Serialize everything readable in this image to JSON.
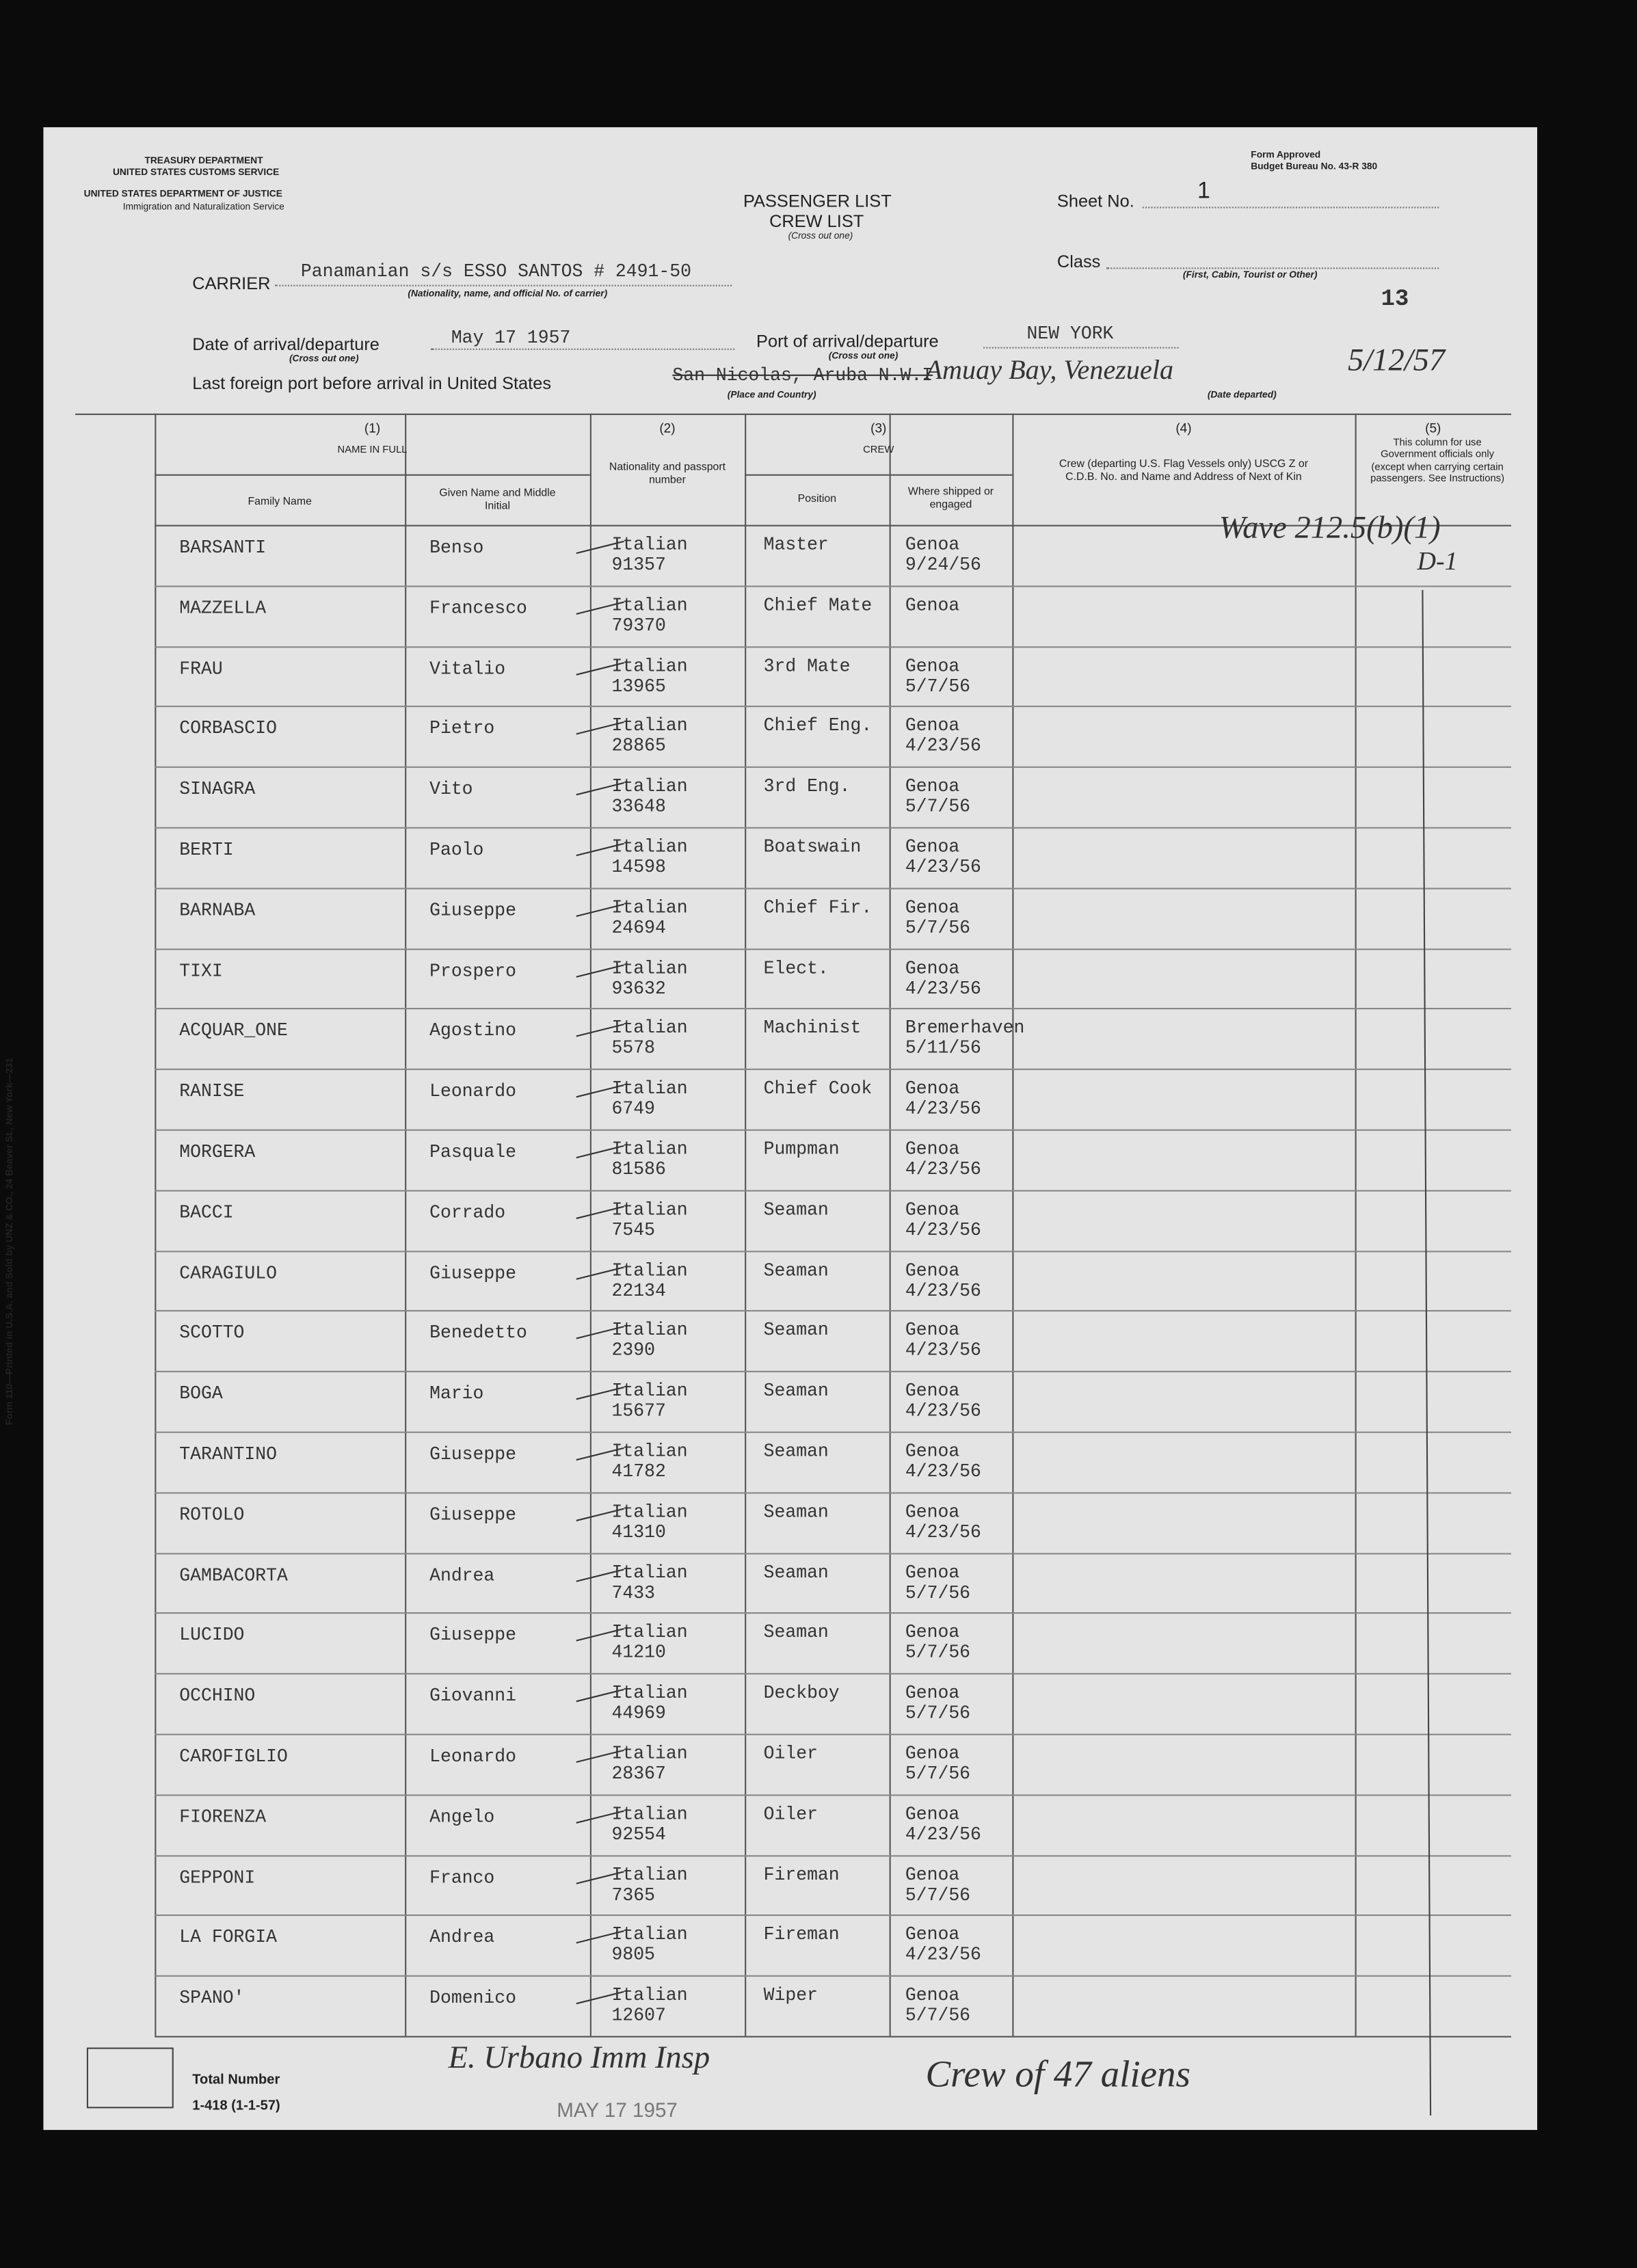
{
  "header": {
    "agency_lines": [
      "TREASURY DEPARTMENT",
      "UNITED STATES CUSTOMS SERVICE",
      "UNITED STATES DEPARTMENT OF JUSTICE",
      "Immigration and Naturalization Service"
    ],
    "form_approved": "Form Approved",
    "budget": "Budget Bureau No. 43-R 380",
    "title1": "PASSENGER LIST",
    "title2": "CREW LIST",
    "title_note": "(Cross out one)",
    "sheet_label": "Sheet No.",
    "sheet_no": "1",
    "class_label": "Class",
    "class_note": "(First, Cabin, Tourist or Other)",
    "page_number": "13",
    "carrier_label": "CARRIER",
    "carrier": "Panamanian s/s ESSO SANTOS # 2491-50",
    "carrier_note": "(Nationality, name, and official No. of carrier)",
    "date_label": "Date of arrival/departure",
    "date_note": "(Cross out one)",
    "date": "May 17 1957",
    "port_label": "Port of arrival/departure",
    "port_note": "(Cross out one)",
    "port": "NEW YORK",
    "last_port_label": "Last foreign port before arrival in United States",
    "last_port_struck": "San Nicolas, Aruba N.W.I",
    "last_port": "Amuay Bay, Venezuela",
    "last_port_note": "(Place and Country)",
    "date_departed": "5/12/57",
    "date_departed_note": "(Date departed)"
  },
  "table": {
    "col1_num": "(1)",
    "col1_title": "NAME IN FULL",
    "family": "Family Name",
    "given": "Given Name and Middle Initial",
    "col2_num": "(2)",
    "col2_title": "Nationality and passport number",
    "col3_num": "(3)",
    "col3_title": "CREW",
    "position": "Position",
    "shipped": "Where shipped or engaged",
    "col4_num": "(4)",
    "col4_title": "Crew (departing U.S. Flag Vessels only) USCG Z or C.D.B. No. and Name and Address of Next of Kin",
    "col5_num": "(5)",
    "col5_title": "This column for use Government officials only (except when carrying certain passengers. See Instructions)",
    "rows": [
      {
        "family": "BARSANTI",
        "given": "Benso",
        "nationality": "Italian",
        "passport": "91357",
        "position": "Master",
        "place": "Genoa",
        "date": "9/24/56"
      },
      {
        "family": "MAZZELLA",
        "given": "Francesco",
        "nationality": "Italian",
        "passport": "79370",
        "position": "Chief Mate",
        "place": "Genoa"
      },
      {
        "family": "FRAU",
        "given": "Vitalio",
        "nationality": "Italian",
        "passport": "13965",
        "position": "3rd Mate",
        "place": "Genoa",
        "date": "5/7/56"
      },
      {
        "family": "CORBASCIO",
        "given": "Pietro",
        "nationality": "Italian",
        "passport": "28865",
        "position": "Chief Eng.",
        "place": "Genoa",
        "date": "4/23/56"
      },
      {
        "family": "SINAGRA",
        "given": "Vito",
        "nationality": "Italian",
        "passport": "33648",
        "position": "3rd Eng.",
        "place": "Genoa",
        "date": "5/7/56"
      },
      {
        "family": "BERTI",
        "given": "Paolo",
        "nationality": "Italian",
        "passport": "14598",
        "position": "Boatswain",
        "place": "Genoa",
        "date": "4/23/56"
      },
      {
        "family": "BARNABA",
        "given": "Giuseppe",
        "nationality": "Italian",
        "passport": "24694",
        "position": "Chief Fir.",
        "place": "Genoa",
        "date": "5/7/56"
      },
      {
        "family": "TIXI",
        "given": "Prospero",
        "nationality": "Italian",
        "passport": "93632",
        "position": "Elect.",
        "place": "Genoa",
        "date": "4/23/56"
      },
      {
        "family": "ACQUAR_ONE",
        "given": "Agostino",
        "nationality": "Italian",
        "passport": "5578",
        "position": "Machinist",
        "place": "Bremerhaven",
        "date": "5/11/56"
      },
      {
        "family": "RANISE",
        "given": "Leonardo",
        "nationality": "Italian",
        "passport": "6749",
        "position": "Chief Cook",
        "place": "Genoa",
        "date": "4/23/56"
      },
      {
        "family": "MORGERA",
        "given": "Pasquale",
        "nationality": "Italian",
        "passport": "81586",
        "position": "Pumpman",
        "place": "Genoa",
        "date": "4/23/56"
      },
      {
        "family": "BACCI",
        "given": "Corrado",
        "nationality": "Italian",
        "passport": "7545",
        "position": "Seaman",
        "place": "Genoa",
        "date": "4/23/56"
      },
      {
        "family": "CARAGIULO",
        "given": "Giuseppe",
        "nationality": "Italian",
        "passport": "22134",
        "position": "Seaman",
        "place": "Genoa",
        "date": "4/23/56"
      },
      {
        "family": "SCOTTO",
        "given": "Benedetto",
        "nationality": "Italian",
        "passport": "2390",
        "position": "Seaman",
        "place": "Genoa",
        "date": "4/23/56"
      },
      {
        "family": "BOGA",
        "given": "Mario",
        "nationality": "Italian",
        "passport": "15677",
        "position": "Seaman",
        "place": "Genoa",
        "date": "4/23/56"
      },
      {
        "family": "TARANTINO",
        "given": "Giuseppe",
        "nationality": "Italian",
        "passport": "41782",
        "position": "Seaman",
        "place": "Genoa",
        "date": "4/23/56"
      },
      {
        "family": "ROTOLO",
        "given": "Giuseppe",
        "nationality": "Italian",
        "passport": "41310",
        "position": "Seaman",
        "place": "Genoa",
        "date": "4/23/56"
      },
      {
        "family": "GAMBACORTA",
        "given": "Andrea",
        "nationality": "Italian",
        "passport": "7433",
        "position": "Seaman",
        "place": "Genoa",
        "date": "5/7/56"
      },
      {
        "family": "LUCIDO",
        "given": "Giuseppe",
        "nationality": "Italian",
        "passport": "41210",
        "position": "Seaman",
        "place": "Genoa",
        "date": "5/7/56"
      },
      {
        "family": "OCCHINO",
        "given": "Giovanni",
        "nationality": "Italian",
        "passport": "44969",
        "position": "Deckboy",
        "place": "Genoa",
        "date": "5/7/56"
      },
      {
        "family": "CAROFIGLIO",
        "given": "Leonardo",
        "nationality": "Italian",
        "passport": "28367",
        "position": "Oiler",
        "place": "Genoa",
        "date": "5/7/56"
      },
      {
        "family": "FIORENZA",
        "given": "Angelo",
        "nationality": "Italian",
        "passport": "92554",
        "position": "Oiler",
        "place": "Genoa",
        "date": "4/23/56"
      },
      {
        "family": "GEPPONI",
        "given": "Franco",
        "nationality": "Italian",
        "passport": "7365",
        "position": "Fireman",
        "place": "Genoa",
        "date": "5/7/56"
      },
      {
        "family": "LA FORGIA",
        "given": "Andrea",
        "nationality": "Italian",
        "passport": "9805",
        "position": "Fireman",
        "place": "Genoa",
        "date": "4/23/56"
      },
      {
        "family": "SPANO'",
        "given": "Domenico",
        "nationality": "Italian",
        "passport": "12607",
        "position": "Wiper",
        "place": "Genoa",
        "date": "5/7/56"
      }
    ]
  },
  "annotation": {
    "code": "Wave 212.5(b)(1)",
    "mark": "D-1"
  },
  "footer": {
    "total_label": "Total Number",
    "form_no": "1-418 (1-1-57)",
    "signature": "E. Urbano Imm Insp",
    "stamp": "MAY 17 1957",
    "note": "Crew of 47 aliens"
  },
  "side_note": "Form 110—Printed in U.S.A. and Sold by UNZ & CO., 24 Beaver St., New York—231"
}
